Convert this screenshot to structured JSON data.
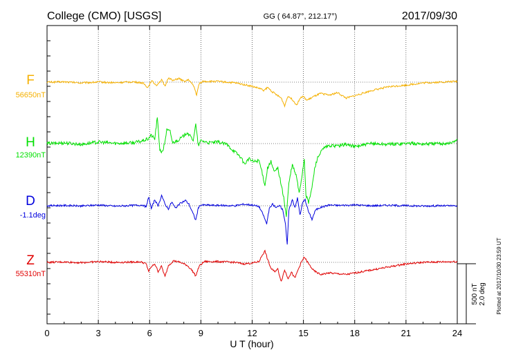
{
  "header": {
    "station": "College (CMO)  [USGS]",
    "coords": "GG ( 64.87°, 212.17°)",
    "date": "2017/09/30"
  },
  "chart_data": {
    "type": "line",
    "xlabel": "U T (hour)",
    "xlim": [
      0,
      24
    ],
    "xticks": [
      "0",
      "3",
      "6",
      "9",
      "12",
      "15",
      "18",
      "21",
      "24"
    ],
    "grid": true,
    "scale_bar": {
      "label1": "500 nT",
      "label2": "2.0 deg"
    },
    "plotted_note": "Plotted at 2017/10/30 23:59 UT",
    "colors": {
      "F": "#f5b000",
      "H": "#00e000",
      "D": "#0000dd",
      "Z": "#e00000"
    },
    "series": [
      {
        "name": "F",
        "baseline": "56650nT",
        "points": [
          [
            0,
            0
          ],
          [
            1,
            0.02
          ],
          [
            2,
            -0.05
          ],
          [
            3,
            0.01
          ],
          [
            4,
            -0.04
          ],
          [
            5,
            0.02
          ],
          [
            5.6,
            -0.05
          ],
          [
            5.9,
            -0.35
          ],
          [
            6.1,
            0.1
          ],
          [
            6.4,
            -0.2
          ],
          [
            6.7,
            0.15
          ],
          [
            6.9,
            -0.3
          ],
          [
            7.1,
            0.3
          ],
          [
            7.4,
            0.1
          ],
          [
            7.7,
            0.25
          ],
          [
            8.0,
            0.05
          ],
          [
            8.3,
            0.15
          ],
          [
            8.6,
            -0.3
          ],
          [
            8.75,
            -0.85
          ],
          [
            8.9,
            -0.1
          ],
          [
            9.1,
            0.05
          ],
          [
            10,
            0.05
          ],
          [
            11,
            -0.05
          ],
          [
            11.5,
            -0.15
          ],
          [
            11.9,
            -0.25
          ],
          [
            12.4,
            -0.4
          ],
          [
            12.7,
            -0.55
          ],
          [
            12.9,
            -0.35
          ],
          [
            13.2,
            -0.65
          ],
          [
            13.5,
            -0.9
          ],
          [
            13.7,
            -1.05
          ],
          [
            13.9,
            -1.55
          ],
          [
            14.1,
            -0.9
          ],
          [
            14.4,
            -1.2
          ],
          [
            14.6,
            -1.5
          ],
          [
            14.8,
            -1.05
          ],
          [
            15.0,
            -0.95
          ],
          [
            15.2,
            -1.2
          ],
          [
            15.6,
            -0.95
          ],
          [
            16,
            -0.75
          ],
          [
            16.5,
            -0.85
          ],
          [
            17,
            -0.7
          ],
          [
            17.5,
            -1.05
          ],
          [
            18,
            -0.9
          ],
          [
            19,
            -0.55
          ],
          [
            20,
            -0.3
          ],
          [
            21,
            -0.2
          ],
          [
            22,
            -0.05
          ],
          [
            23,
            0
          ],
          [
            24,
            0.05
          ]
        ]
      },
      {
        "name": "H",
        "baseline": "12390nT",
        "points": [
          [
            0,
            0
          ],
          [
            1,
            0.05
          ],
          [
            2,
            -0.05
          ],
          [
            3,
            0.1
          ],
          [
            4,
            0.02
          ],
          [
            5,
            0.05
          ],
          [
            5.5,
            0.15
          ],
          [
            5.9,
            0.3
          ],
          [
            6.1,
            0.55
          ],
          [
            6.3,
            0.3
          ],
          [
            6.45,
            1.7
          ],
          [
            6.6,
            -0.4
          ],
          [
            6.75,
            -0.6
          ],
          [
            6.9,
            0.15
          ],
          [
            7.0,
            0.9
          ],
          [
            7.2,
            0.8
          ],
          [
            7.35,
            0.05
          ],
          [
            7.6,
            0.2
          ],
          [
            7.9,
            0.4
          ],
          [
            8.2,
            0.75
          ],
          [
            8.35,
            0.5
          ],
          [
            8.55,
            0.25
          ],
          [
            8.7,
            1.25
          ],
          [
            8.85,
            -0.15
          ],
          [
            9.0,
            0.2
          ],
          [
            9.5,
            0.05
          ],
          [
            10,
            0.1
          ],
          [
            10.5,
            -0.05
          ],
          [
            11,
            -0.55
          ],
          [
            11.3,
            -0.85
          ],
          [
            11.55,
            -1.35
          ],
          [
            11.8,
            -1.0
          ],
          [
            12.1,
            -1.2
          ],
          [
            12.4,
            -1.1
          ],
          [
            12.6,
            -2.0
          ],
          [
            12.75,
            -2.75
          ],
          [
            12.9,
            -1.6
          ],
          [
            13.1,
            -1.2
          ],
          [
            13.3,
            -1.9
          ],
          [
            13.5,
            -1.6
          ],
          [
            13.7,
            -2.7
          ],
          [
            13.85,
            -3.6
          ],
          [
            14.0,
            -4.8
          ],
          [
            14.15,
            -2.6
          ],
          [
            14.35,
            -1.4
          ],
          [
            14.6,
            -2.2
          ],
          [
            14.75,
            -3.3
          ],
          [
            14.9,
            -2.2
          ],
          [
            15.05,
            -1.0
          ],
          [
            15.15,
            -3.4
          ],
          [
            15.3,
            -3.9
          ],
          [
            15.5,
            -2.9
          ],
          [
            15.65,
            -1.7
          ],
          [
            15.8,
            -1.0
          ],
          [
            16,
            -0.6
          ],
          [
            16.2,
            -0.3
          ],
          [
            16.5,
            -0.15
          ],
          [
            17,
            -0.15
          ],
          [
            17.5,
            -0.05
          ],
          [
            18,
            -0.2
          ],
          [
            19,
            0
          ],
          [
            20,
            -0.05
          ],
          [
            21,
            0.02
          ],
          [
            22,
            -0.02
          ],
          [
            23,
            0
          ],
          [
            23.7,
            0.05
          ],
          [
            24,
            0.3
          ]
        ]
      },
      {
        "name": "D",
        "baseline": "-1.1deg",
        "points": [
          [
            0,
            0
          ],
          [
            1,
            0.02
          ],
          [
            2,
            -0.02
          ],
          [
            3,
            0.05
          ],
          [
            4,
            -0.03
          ],
          [
            5,
            0.02
          ],
          [
            5.6,
            0.05
          ],
          [
            5.8,
            -0.1
          ],
          [
            5.95,
            0.6
          ],
          [
            6.1,
            -0.2
          ],
          [
            6.3,
            0.4
          ],
          [
            6.5,
            -0.05
          ],
          [
            6.7,
            0.7
          ],
          [
            6.9,
            0.1
          ],
          [
            7.1,
            -0.2
          ],
          [
            7.3,
            0.25
          ],
          [
            7.5,
            -0.15
          ],
          [
            7.8,
            0.15
          ],
          [
            8.1,
            0.35
          ],
          [
            8.3,
            0.1
          ],
          [
            8.5,
            -0.4
          ],
          [
            8.7,
            -0.95
          ],
          [
            8.85,
            -0.15
          ],
          [
            9.0,
            0.05
          ],
          [
            10,
            0.02
          ],
          [
            11,
            0
          ],
          [
            11.5,
            0.1
          ],
          [
            12,
            0.05
          ],
          [
            12.4,
            -0.05
          ],
          [
            12.65,
            -0.6
          ],
          [
            12.85,
            -1.2
          ],
          [
            13.0,
            -0.2
          ],
          [
            13.2,
            0.1
          ],
          [
            13.4,
            -0.15
          ],
          [
            13.6,
            0.05
          ],
          [
            13.8,
            -0.3
          ],
          [
            13.95,
            -1.2
          ],
          [
            14.05,
            -2.6
          ],
          [
            14.15,
            -0.3
          ],
          [
            14.35,
            0.4
          ],
          [
            14.5,
            -0.1
          ],
          [
            14.65,
            0.5
          ],
          [
            14.8,
            -0.6
          ],
          [
            14.95,
            0.2
          ],
          [
            15.1,
            0.4
          ],
          [
            15.3,
            -0.4
          ],
          [
            15.5,
            -0.9
          ],
          [
            15.7,
            -0.3
          ],
          [
            15.9,
            -0.15
          ],
          [
            16.5,
            0.05
          ],
          [
            17,
            0.02
          ],
          [
            18,
            0.05
          ],
          [
            19,
            0
          ],
          [
            20,
            0.03
          ],
          [
            21,
            0
          ],
          [
            22,
            -0.02
          ],
          [
            23,
            0
          ],
          [
            24,
            -0.02
          ]
        ]
      },
      {
        "name": "Z",
        "baseline": "55310nT",
        "points": [
          [
            0,
            0
          ],
          [
            1,
            0.02
          ],
          [
            2,
            -0.02
          ],
          [
            3,
            0.05
          ],
          [
            4,
            0
          ],
          [
            5,
            0.02
          ],
          [
            5.5,
            0.03
          ],
          [
            5.8,
            -0.1
          ],
          [
            5.95,
            -0.6
          ],
          [
            6.1,
            -0.3
          ],
          [
            6.3,
            -0.1
          ],
          [
            6.5,
            -0.6
          ],
          [
            6.7,
            -0.25
          ],
          [
            6.9,
            -0.95
          ],
          [
            7.1,
            -0.2
          ],
          [
            7.4,
            0.1
          ],
          [
            7.8,
            0.0
          ],
          [
            8.2,
            -0.2
          ],
          [
            8.5,
            -0.55
          ],
          [
            8.7,
            -0.9
          ],
          [
            8.9,
            -0.25
          ],
          [
            9.2,
            0.05
          ],
          [
            10,
            0.05
          ],
          [
            11,
            0
          ],
          [
            11.5,
            -0.1
          ],
          [
            12,
            -0.05
          ],
          [
            12.4,
            0.05
          ],
          [
            12.6,
            0.5
          ],
          [
            12.75,
            0.75
          ],
          [
            12.9,
            0.2
          ],
          [
            13.1,
            -0.4
          ],
          [
            13.3,
            -0.6
          ],
          [
            13.5,
            -0.45
          ],
          [
            13.7,
            -1.25
          ],
          [
            13.9,
            -0.5
          ],
          [
            14.1,
            -1.05
          ],
          [
            14.3,
            -0.65
          ],
          [
            14.5,
            -1.05
          ],
          [
            14.7,
            -0.45
          ],
          [
            14.9,
            0.05
          ],
          [
            15.05,
            0.35
          ],
          [
            15.3,
            -0.1
          ],
          [
            15.6,
            -0.55
          ],
          [
            16,
            -0.8
          ],
          [
            16.5,
            -0.7
          ],
          [
            17,
            -0.75
          ],
          [
            17.5,
            -0.8
          ],
          [
            18,
            -0.7
          ],
          [
            19,
            -0.5
          ],
          [
            20,
            -0.3
          ],
          [
            21,
            -0.1
          ],
          [
            22,
            0
          ],
          [
            23,
            0.03
          ],
          [
            24,
            0.05
          ]
        ]
      }
    ]
  }
}
